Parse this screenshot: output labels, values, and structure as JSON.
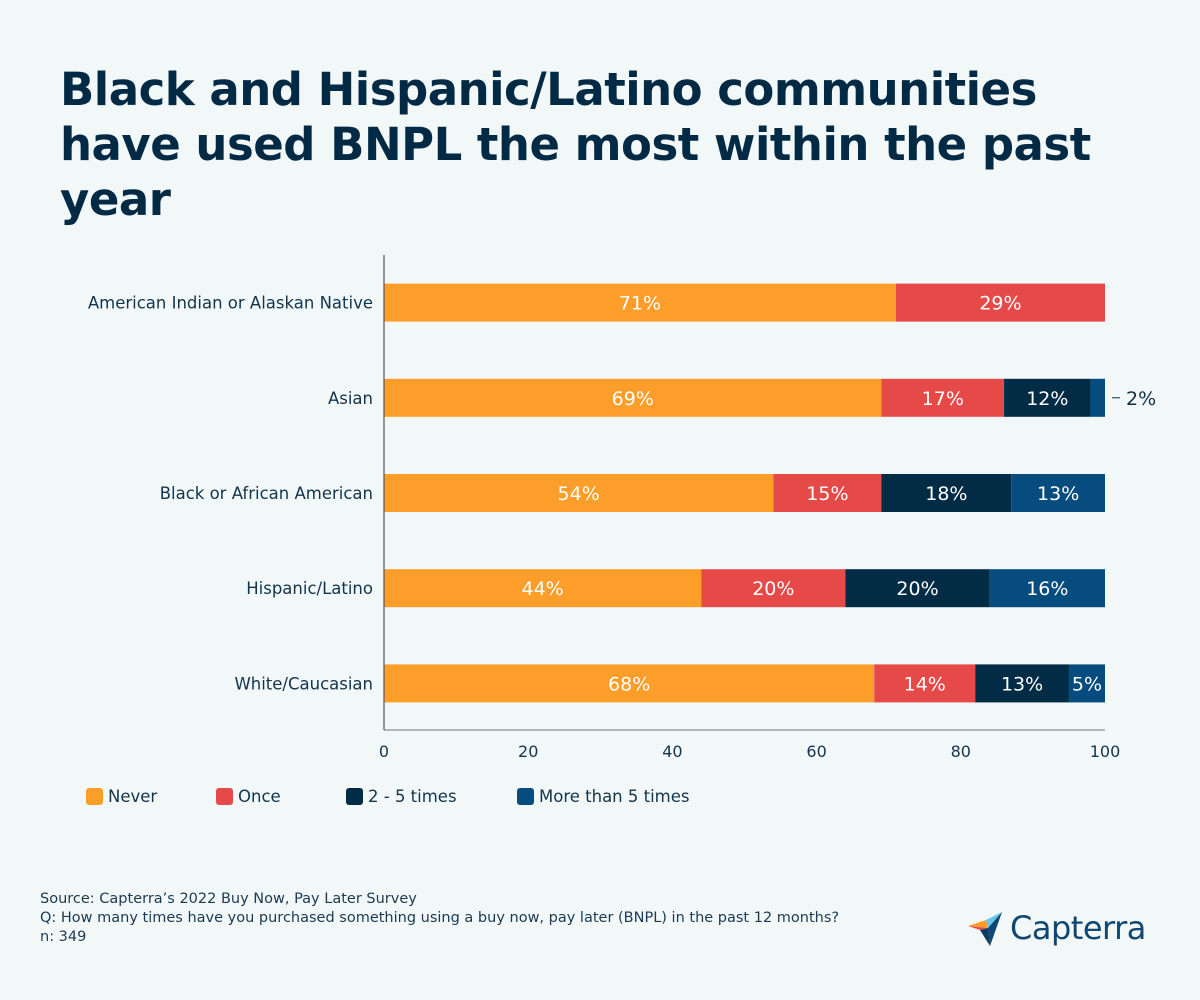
{
  "title": "Black and Hispanic/Latino communities have used BNPL the most within the past year",
  "chart_data": {
    "type": "bar",
    "orientation": "horizontal",
    "stacked": true,
    "title": "Black and Hispanic/Latino communities have used BNPL the most within the past year",
    "xlabel": "",
    "ylabel": "",
    "xlim": [
      0,
      100
    ],
    "xticks": [
      0,
      20,
      40,
      60,
      80,
      100
    ],
    "grid": false,
    "legend_position": "bottom-left",
    "categories": [
      "American Indian or Alaskan Native",
      "Asian",
      "Black or African American",
      "Hispanic/Latino",
      "White/Caucasian"
    ],
    "series": [
      {
        "name": "Never",
        "color": "#fd9e2b",
        "values": [
          71,
          69,
          54,
          44,
          68
        ]
      },
      {
        "name": "Once",
        "color": "#e54a49",
        "values": [
          29,
          17,
          15,
          20,
          14
        ]
      },
      {
        "name": "2 - 5 times",
        "color": "#022c45",
        "values": [
          0,
          12,
          18,
          20,
          13
        ]
      },
      {
        "name": "More than 5 times",
        "color": "#074c7e",
        "values": [
          0,
          2,
          13,
          16,
          5
        ]
      }
    ],
    "value_suffix": "%",
    "external_label_threshold": 3
  },
  "legend": [
    {
      "label": "Never",
      "color": "#fd9e2b"
    },
    {
      "label": "Once",
      "color": "#e54a49"
    },
    {
      "label": "2 - 5 times",
      "color": "#022c45"
    },
    {
      "label": "More than 5 times",
      "color": "#074c7e"
    }
  ],
  "source": {
    "line1": "Source: Capterra’s 2022 Buy Now, Pay Later Survey",
    "line2": "Q: How many times have you purchased something using a buy now, pay later (BNPL) in the past 12 months?",
    "line3": "n: 349"
  },
  "brand": {
    "name": "Capterra",
    "icon": "capterra-arrow-icon"
  }
}
